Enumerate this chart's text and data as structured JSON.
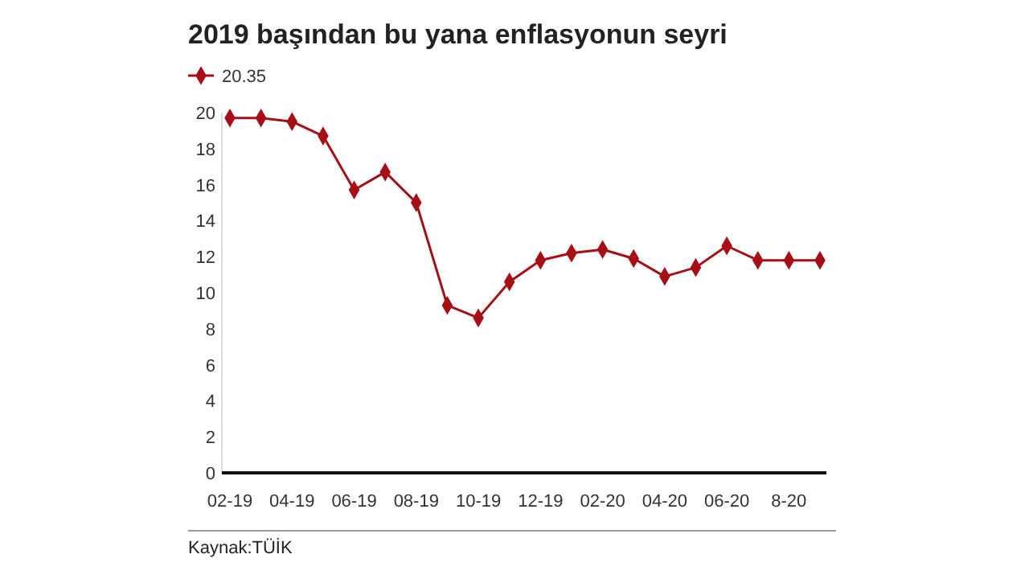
{
  "chart_data": {
    "type": "line",
    "title": "2019 başından bu yana enflasyonun seyri",
    "categories": [
      "02-19",
      null,
      "04-19",
      null,
      "06-19",
      null,
      "08-19",
      null,
      "10-19",
      null,
      "12-19",
      null,
      "02-20",
      null,
      "04-20",
      null,
      "06-20",
      null,
      "8-20",
      null
    ],
    "series": [
      {
        "name": "20.35",
        "color": "#a50f15",
        "values": [
          19.7,
          19.7,
          19.5,
          18.7,
          15.7,
          16.7,
          15.0,
          9.3,
          8.6,
          10.6,
          11.8,
          12.2,
          12.4,
          11.9,
          10.9,
          11.4,
          12.6,
          11.8,
          11.8,
          11.8
        ]
      }
    ],
    "ylim": [
      0,
      20
    ],
    "yticks": [
      0,
      2,
      4,
      6,
      8,
      10,
      12,
      14,
      16,
      18,
      20
    ],
    "grid": false,
    "legend": "top left",
    "marker": "diamond",
    "line_style": "solid",
    "annotations": [
      "Kaynak:TÜİK"
    ]
  }
}
